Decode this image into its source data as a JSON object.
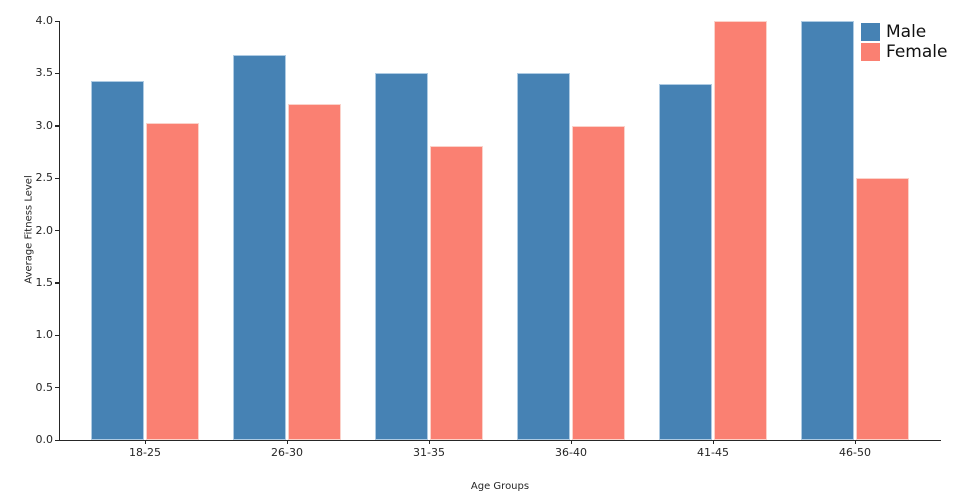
{
  "chart_data": {
    "type": "bar",
    "categories": [
      "18-25",
      "26-30",
      "31-35",
      "36-40",
      "41-45",
      "46-50"
    ],
    "series": [
      {
        "name": "Male",
        "color": "#4682B4",
        "edge_color": "#AECBE3",
        "values": [
          3.43,
          3.68,
          3.5,
          3.5,
          3.4,
          4.0
        ]
      },
      {
        "name": "Female",
        "color": "#FA8072",
        "edge_color": "#FBD2CA",
        "values": [
          3.03,
          3.21,
          2.81,
          3.0,
          4.0,
          2.5
        ]
      }
    ],
    "title": "",
    "xlabel": "Age Groups",
    "ylabel": "Average Fitness Level",
    "ylim": [
      0.0,
      4.0
    ],
    "ytick_step": 0.5,
    "ytick_labels": [
      "0.0",
      "0.5",
      "1.0",
      "1.5",
      "2.0",
      "2.5",
      "3.0",
      "3.5",
      "4.0"
    ],
    "grid": false,
    "legend_position": "upper-right"
  }
}
